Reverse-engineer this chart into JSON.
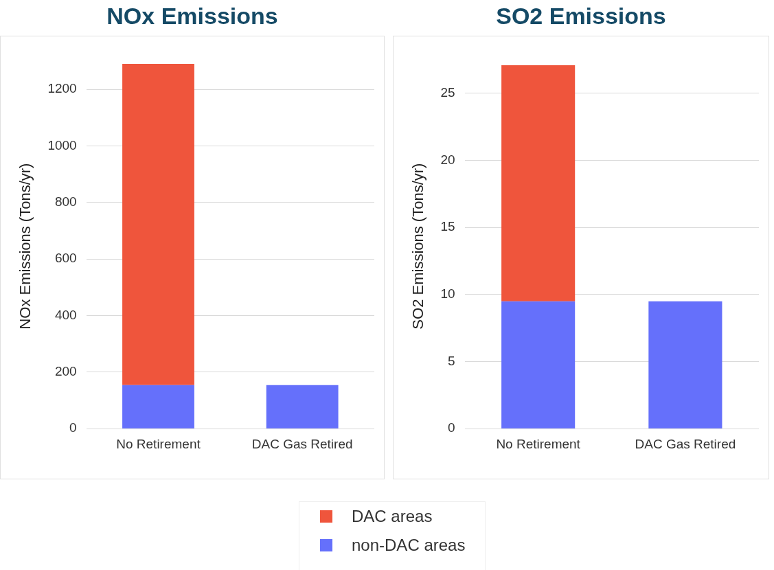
{
  "chart_data": [
    {
      "type": "bar",
      "title": "NOx Emissions",
      "ylabel": "NOx Emissions (Tons/yr)",
      "categories": [
        "No Retirement",
        "DAC Gas Retired"
      ],
      "stacked": true,
      "series": [
        {
          "name": "non-DAC areas",
          "color": "#6570fb",
          "values": [
            154,
            154
          ]
        },
        {
          "name": "DAC areas",
          "color": "#ef553c",
          "values": [
            1136,
            0
          ]
        }
      ],
      "ylim": [
        0,
        1290
      ],
      "yticks": [
        0,
        200,
        400,
        600,
        800,
        1000,
        1200
      ],
      "grid": "y",
      "legend": "bottom"
    },
    {
      "type": "bar",
      "title": "SO2 Emissions",
      "ylabel": "SO2 Emissions (Tons/yr)",
      "categories": [
        "No Retirement",
        "DAC Gas Retired"
      ],
      "stacked": true,
      "series": [
        {
          "color": "#6570fb",
          "values": [
            9.5,
            9.5
          ]
        },
        {
          "color": "#ef553c",
          "values": [
            17.6,
            0
          ]
        }
      ],
      "ylim": [
        0,
        27.2
      ],
      "yticks": [
        0,
        5,
        10,
        15,
        20,
        25
      ],
      "grid": "y"
    }
  ]
}
